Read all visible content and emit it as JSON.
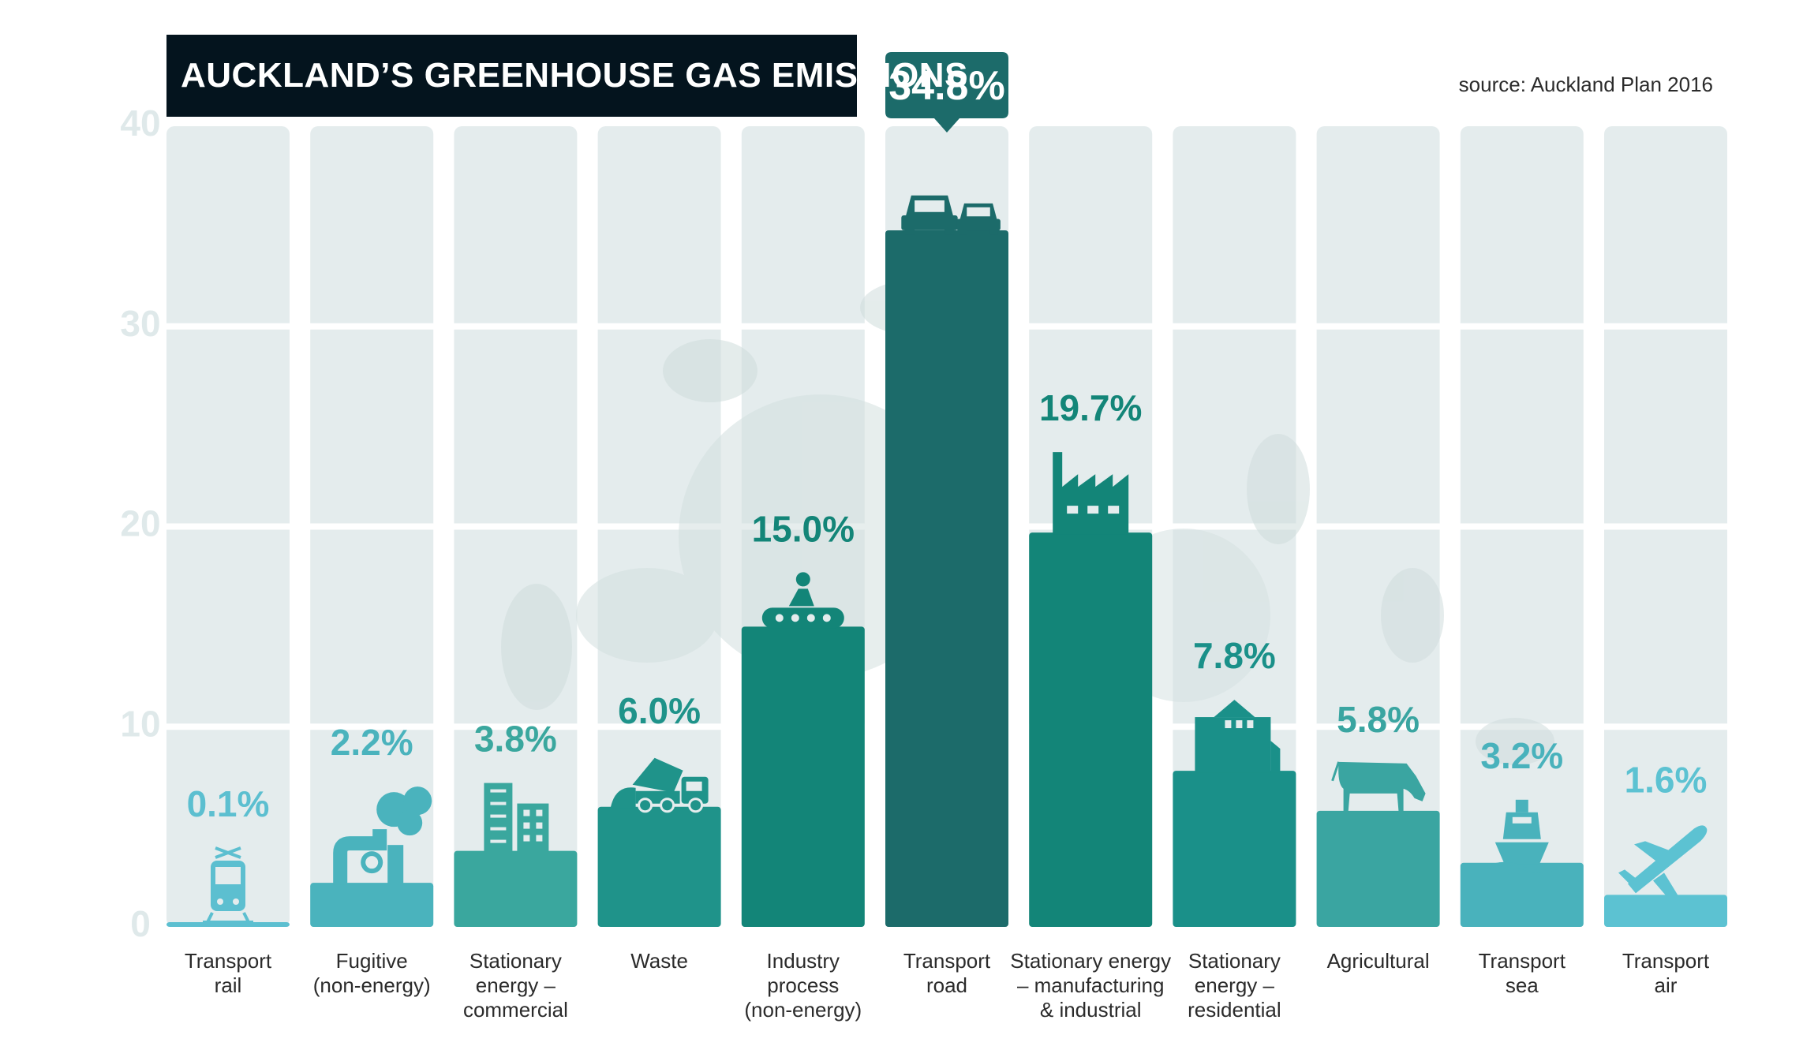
{
  "title": "AUCKLAND’S GREENHOUSE GAS EMISSIONS",
  "source": "source: Auckland Plan 2016",
  "chart_data": {
    "type": "bar",
    "title": "AUCKLAND’S GREENHOUSE GAS EMISSIONS",
    "ylim": [
      0,
      40
    ],
    "yticks": [
      0,
      10,
      20,
      30,
      40
    ],
    "categories": [
      [
        "Transport",
        "rail"
      ],
      [
        "Fugitive",
        "(non-energy)"
      ],
      [
        "Stationary",
        "energy –",
        "commercial"
      ],
      [
        "Waste"
      ],
      [
        "Industry",
        "process",
        "(non-energy)"
      ],
      [
        "Transport",
        "road"
      ],
      [
        "Stationary energy",
        "– manufacturing",
        "& industrial"
      ],
      [
        "Stationary",
        "energy –",
        "residential"
      ],
      [
        "Agricultural"
      ],
      [
        "Transport",
        "sea"
      ],
      [
        "Transport",
        "air"
      ]
    ],
    "values": [
      0.1,
      2.2,
      3.8,
      6.0,
      15.0,
      34.8,
      19.7,
      7.8,
      5.8,
      3.2,
      1.6
    ],
    "labels": [
      "0.1%",
      "2.2%",
      "3.8%",
      "6.0%",
      "15.0%",
      "34.8%",
      "19.7%",
      "7.8%",
      "5.8%",
      "3.2%",
      "1.6%"
    ],
    "highlight_index": 5,
    "icons": [
      "train-icon",
      "pipe-icon",
      "office-building-icon",
      "garbage-truck-icon",
      "conveyor-worker-icon",
      "cars-icon",
      "factory-icon",
      "apartment-icon",
      "cow-icon",
      "ship-icon",
      "airplane-icon"
    ],
    "colors": [
      "#5cbfd0",
      "#4ab3bd",
      "#3aa79e",
      "#1f938a",
      "#138578",
      "#1c6b6a",
      "#138578",
      "#1a9089",
      "#3aa5a1",
      "#49b2bc",
      "#5cc2d2"
    ],
    "grid": true
  },
  "colors": {
    "panel": "#e4eced",
    "axis_text": "#dfe9ea",
    "title_bg": "#04141e",
    "highlight_bg": "#1c6b6a",
    "category_text": "#2b2b2b"
  }
}
